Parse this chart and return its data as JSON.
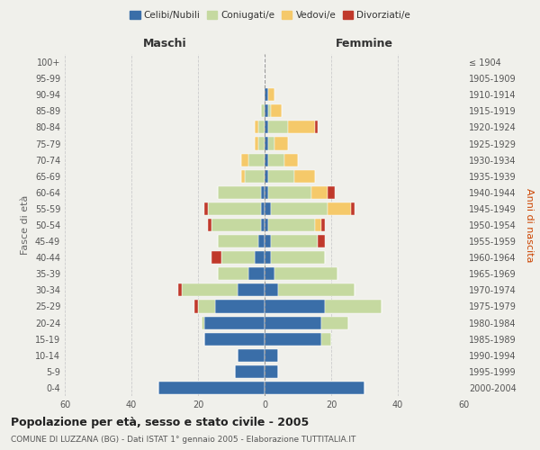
{
  "age_groups": [
    "0-4",
    "5-9",
    "10-14",
    "15-19",
    "20-24",
    "25-29",
    "30-34",
    "35-39",
    "40-44",
    "45-49",
    "50-54",
    "55-59",
    "60-64",
    "65-69",
    "70-74",
    "75-79",
    "80-84",
    "85-89",
    "90-94",
    "95-99",
    "100+"
  ],
  "birth_years": [
    "2000-2004",
    "1995-1999",
    "1990-1994",
    "1985-1989",
    "1980-1984",
    "1975-1979",
    "1970-1974",
    "1965-1969",
    "1960-1964",
    "1955-1959",
    "1950-1954",
    "1945-1949",
    "1940-1944",
    "1935-1939",
    "1930-1934",
    "1925-1929",
    "1920-1924",
    "1915-1919",
    "1910-1914",
    "1905-1909",
    "≤ 1904"
  ],
  "males": {
    "celibe": [
      32,
      9,
      8,
      18,
      18,
      15,
      8,
      5,
      3,
      2,
      1,
      1,
      1,
      0,
      0,
      0,
      0,
      0,
      0,
      0,
      0
    ],
    "coniugato": [
      0,
      0,
      0,
      0,
      1,
      5,
      17,
      9,
      10,
      12,
      15,
      16,
      13,
      6,
      5,
      2,
      2,
      1,
      0,
      0,
      0
    ],
    "vedovo": [
      0,
      0,
      0,
      0,
      0,
      0,
      0,
      0,
      0,
      0,
      0,
      0,
      0,
      1,
      2,
      1,
      1,
      0,
      0,
      0,
      0
    ],
    "divorziato": [
      0,
      0,
      0,
      0,
      0,
      1,
      1,
      0,
      3,
      0,
      1,
      1,
      0,
      0,
      0,
      0,
      0,
      0,
      0,
      0,
      0
    ]
  },
  "females": {
    "nubile": [
      30,
      4,
      4,
      17,
      17,
      18,
      4,
      3,
      2,
      2,
      1,
      2,
      1,
      1,
      1,
      1,
      1,
      1,
      1,
      0,
      0
    ],
    "coniugata": [
      0,
      0,
      0,
      3,
      8,
      17,
      23,
      19,
      16,
      14,
      14,
      17,
      13,
      8,
      5,
      2,
      6,
      1,
      0,
      0,
      0
    ],
    "vedova": [
      0,
      0,
      0,
      0,
      0,
      0,
      0,
      0,
      0,
      0,
      2,
      7,
      5,
      6,
      4,
      4,
      8,
      3,
      2,
      0,
      0
    ],
    "divorziata": [
      0,
      0,
      0,
      0,
      0,
      0,
      0,
      0,
      0,
      2,
      1,
      1,
      2,
      0,
      0,
      0,
      1,
      0,
      0,
      0,
      0
    ]
  },
  "colors": {
    "celibe": "#3a6ea8",
    "coniugato": "#c5d9a0",
    "vedovo": "#f5c96a",
    "divorziato": "#c0392b"
  },
  "title": "Popolazione per età, sesso e stato civile - 2005",
  "subtitle": "COMUNE DI LUZZANA (BG) - Dati ISTAT 1° gennaio 2005 - Elaborazione TUTTITALIA.IT",
  "xlabel_left": "Maschi",
  "xlabel_right": "Femmine",
  "ylabel_left": "Fasce di età",
  "ylabel_right": "Anni di nascita",
  "xlim": 60,
  "legend_labels": [
    "Celibi/Nubili",
    "Coniugati/e",
    "Vedovi/e",
    "Divorziati/e"
  ],
  "background_color": "#f0f0eb"
}
